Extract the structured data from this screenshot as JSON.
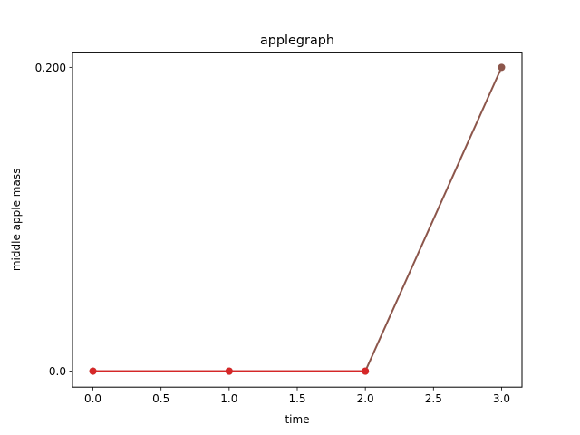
{
  "chart_data": {
    "type": "line",
    "title": "applegraph",
    "xlabel": "time",
    "ylabel": "middle apple mass",
    "xlim": [
      -0.15,
      3.15
    ],
    "ylim": [
      -0.0105,
      0.21
    ],
    "x_ticks": [
      0.0,
      0.5,
      1.0,
      1.5,
      2.0,
      2.5,
      3.0
    ],
    "x_tick_labels": [
      "0.0",
      "0.5",
      "1.0",
      "1.5",
      "2.0",
      "2.5",
      "3.0"
    ],
    "y_ticks": [
      0.0,
      0.2
    ],
    "y_tick_labels": [
      "0.0",
      "0.200"
    ],
    "grid": false,
    "legend": "none",
    "series": [
      {
        "color": "#8c564b",
        "x": [
          0,
          1,
          2,
          3
        ],
        "y": [
          0,
          0,
          0,
          0.2
        ]
      },
      {
        "color": "#d62728",
        "x": [
          0,
          1,
          2
        ],
        "y": [
          0,
          0,
          0
        ]
      }
    ]
  }
}
